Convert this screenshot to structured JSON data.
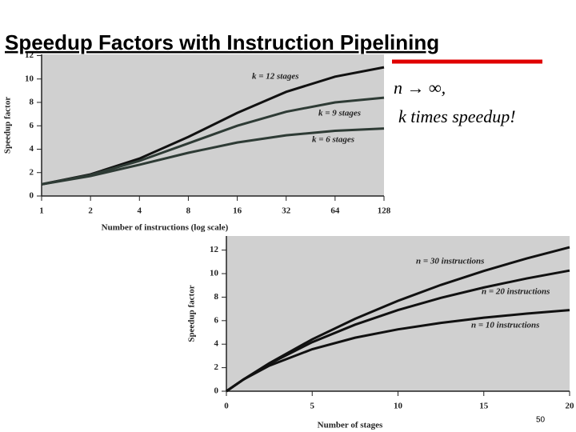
{
  "slide": {
    "title": "Speedup Factors with Instruction Pipelining",
    "formula": "n → ∞,",
    "note": "k times  speedup!",
    "page": "50"
  },
  "chart_data": [
    {
      "type": "line",
      "xscale": "log",
      "xlabel": "Number of instructions (log scale)",
      "ylabel": "Speedup factor",
      "x": [
        1,
        2,
        4,
        8,
        16,
        32,
        64,
        128
      ],
      "xlim": [
        1,
        128
      ],
      "xticks": [
        1,
        2,
        4,
        8,
        16,
        32,
        64,
        128
      ],
      "ylim": [
        0,
        12.1
      ],
      "yticks": [
        0,
        2,
        4,
        6,
        8,
        10,
        12
      ],
      "background": "#d0d0d0",
      "series": [
        {
          "name": "k = 12 stages",
          "color": "#111111",
          "values": [
            1,
            1.85,
            3.2,
            5.05,
            7.1,
            8.9,
            10.2,
            11.0
          ]
        },
        {
          "name": "k = 9 stages",
          "color": "#2e3b35",
          "values": [
            1,
            1.8,
            3.0,
            4.5,
            6.0,
            7.2,
            8.0,
            8.4
          ]
        },
        {
          "name": "k = 6 stages",
          "color": "#2e3b35",
          "values": [
            1,
            1.71,
            2.67,
            3.69,
            4.57,
            5.19,
            5.57,
            5.77
          ]
        }
      ]
    },
    {
      "type": "line",
      "xscale": "linear",
      "xlabel": "Number of stages",
      "ylabel": "Speedup factor",
      "x": [
        0,
        1,
        2.5,
        5,
        7.5,
        10,
        12.5,
        15,
        17.5,
        20
      ],
      "xlim": [
        0,
        20
      ],
      "xticks": [
        0,
        5,
        10,
        15,
        20
      ],
      "ylim": [
        0,
        13.2
      ],
      "yticks": [
        0,
        2,
        4,
        6,
        8,
        10,
        12
      ],
      "background": "#d0d0d0",
      "series": [
        {
          "name": "n = 30 instructions",
          "color": "#111111",
          "values": [
            0,
            1,
            2.38,
            4.41,
            6.16,
            7.69,
            9.04,
            10.23,
            11.29,
            12.24
          ]
        },
        {
          "name": "n = 20 instructions",
          "color": "#111111",
          "values": [
            0,
            1,
            2.33,
            4.17,
            5.66,
            6.9,
            7.94,
            8.82,
            9.59,
            10.26
          ]
        },
        {
          "name": "n = 10 instructions",
          "color": "#111111",
          "values": [
            0,
            1,
            2.17,
            3.57,
            4.55,
            5.26,
            5.81,
            6.25,
            6.6,
            6.9
          ]
        }
      ]
    }
  ]
}
